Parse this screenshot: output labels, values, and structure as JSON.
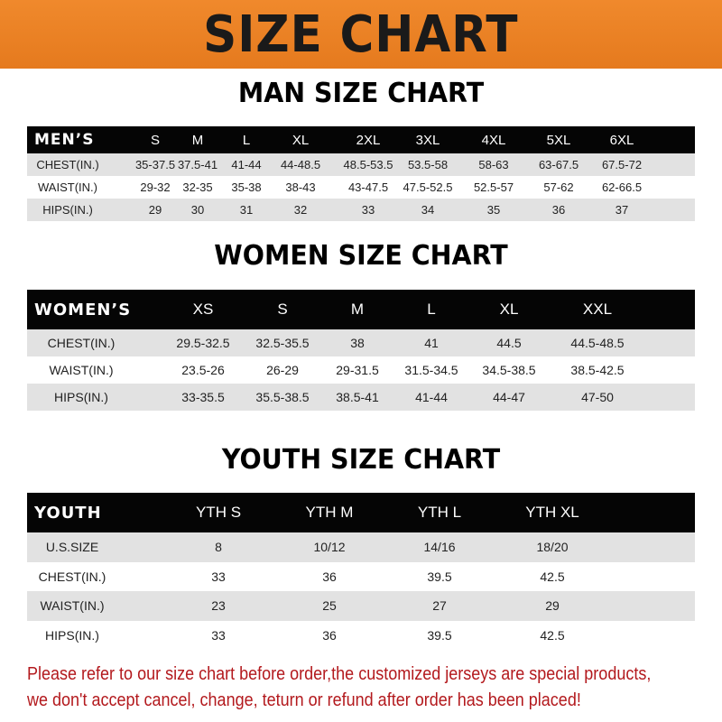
{
  "banner_title": "SIZE CHART",
  "men": {
    "title": "MAN SIZE CHART",
    "header": [
      "MEN’S",
      "S",
      "M",
      "L",
      "XL",
      "2XL",
      "3XL",
      "4XL",
      "5XL",
      "6XL"
    ],
    "rows": [
      [
        "CHEST(IN.)",
        "35-37.5",
        "37.5-41",
        "41-44",
        "44-48.5",
        "48.5-53.5",
        "53.5-58",
        "58-63",
        "63-67.5",
        "67.5-72"
      ],
      [
        "WAIST(IN.)",
        "29-32",
        "32-35",
        "35-38",
        "38-43",
        "43-47.5",
        "47.5-52.5",
        "52.5-57",
        "57-62",
        "62-66.5"
      ],
      [
        "HIPS(IN.)",
        "29",
        "30",
        "31",
        "32",
        "33",
        "34",
        "35",
        "36",
        "37"
      ]
    ]
  },
  "women": {
    "title": "WOMEN SIZE CHART",
    "header": [
      "WOMEN’S",
      "XS",
      "S",
      "M",
      "L",
      "XL",
      "XXL"
    ],
    "rows": [
      [
        "CHEST(IN.)",
        "29.5-32.5",
        "32.5-35.5",
        "38",
        "41",
        "44.5",
        "44.5-48.5"
      ],
      [
        "WAIST(IN.)",
        "23.5-26",
        "26-29",
        "29-31.5",
        "31.5-34.5",
        "34.5-38.5",
        "38.5-42.5"
      ],
      [
        "HIPS(IN.)",
        "33-35.5",
        "35.5-38.5",
        "38.5-41",
        "41-44",
        "44-47",
        "47-50"
      ]
    ]
  },
  "youth": {
    "title": "YOUTH SIZE CHART",
    "header": [
      "YOUTH",
      "YTH S",
      "YTH M",
      "YTH L",
      "YTH XL"
    ],
    "rows": [
      [
        "U.S.SIZE",
        "8",
        "10/12",
        "14/16",
        "18/20"
      ],
      [
        "CHEST(IN.)",
        "33",
        "36",
        "39.5",
        "42.5"
      ],
      [
        "WAIST(IN.)",
        "23",
        "25",
        "27",
        "29"
      ],
      [
        "HIPS(IN.)",
        "33",
        "36",
        "39.5",
        "42.5"
      ]
    ]
  },
  "footer": {
    "line1": "Please refer to our size chart before order,the customized jerseys are special products,",
    "line2": "we don't accept cancel, change, teturn or refund after order has been placed!"
  }
}
